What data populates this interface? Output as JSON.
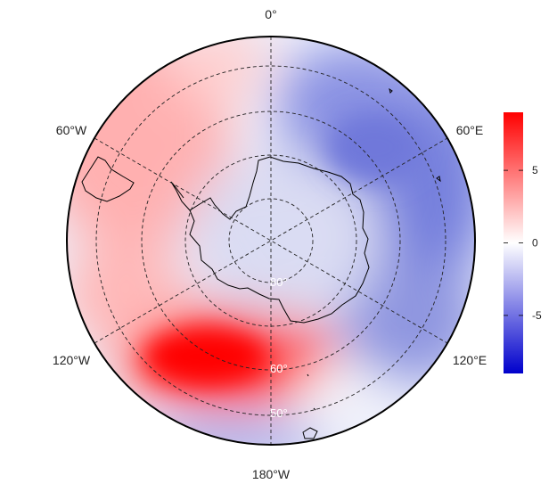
{
  "map": {
    "projection": "south polar stereographic",
    "longitude_labels": [
      "0°",
      "60°E",
      "120°E",
      "180°W",
      "120°W",
      "60°W"
    ],
    "latitude_labels": [
      "80°",
      "60°",
      "50°"
    ],
    "land_outline": [
      "Antarctica",
      "South America tip",
      "New Zealand",
      "sub-Antarctic islands"
    ]
  },
  "colorbar": {
    "ticks": [
      "5",
      "0",
      "-5"
    ],
    "tick_values": [
      5,
      0,
      -5
    ],
    "min": -9,
    "max": 9,
    "colors": {
      "low": "#0000cc",
      "mid": "#ffffff",
      "high": "#ff0000"
    }
  },
  "field_anomalies": {
    "strong_positive": "Amundsen–Bellingshausen / South Pacific sector (~150°W–110°W)",
    "positive": "South Atlantic / Weddell sector (~30°W–60°W)",
    "negative": "Indian Ocean & East Antarctic sector (~30°E–120°E)",
    "weak_negative": "Antarctic interior"
  }
}
